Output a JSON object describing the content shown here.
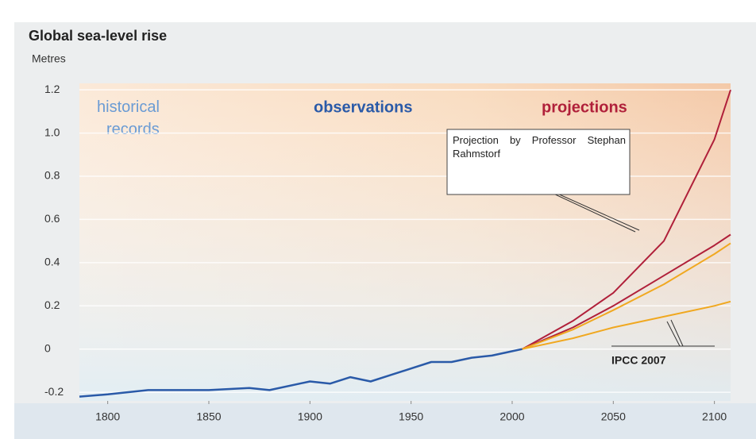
{
  "chart_data": {
    "type": "line",
    "title": "Global sea-level rise",
    "y_label": "Metres",
    "regions": [
      "historical records",
      "observations",
      "projections"
    ],
    "annotations": [
      "Projection by Professor Stephan Rahmstorf",
      "IPCC 2007"
    ],
    "xlim": [
      1786,
      2108
    ],
    "ylim": [
      -0.24,
      1.23
    ],
    "xticks": [
      1800,
      1850,
      1900,
      1950,
      2000,
      2050,
      2100
    ],
    "yticks": [
      1.2,
      {
        "value": 1,
        "label": "1.0"
      },
      0.8,
      0.6,
      0.4,
      0.2,
      0,
      -0.2
    ],
    "grid": true,
    "series": [
      {
        "name": "observations",
        "color": "#2a5aa8",
        "x": [
          1786,
          1800,
          1820,
          1850,
          1870,
          1880,
          1900,
          1910,
          1920,
          1930,
          1940,
          1950,
          1960,
          1970,
          1980,
          1990,
          2000,
          2005
        ],
        "values": [
          -0.22,
          -0.21,
          -0.19,
          -0.19,
          -0.18,
          -0.19,
          -0.15,
          -0.16,
          -0.13,
          -0.15,
          -0.12,
          -0.09,
          -0.06,
          -0.06,
          -0.04,
          -0.03,
          -0.01,
          0
        ]
      },
      {
        "name": "Rahmstorf upper",
        "color": "#b0203a",
        "x": [
          2005,
          2030,
          2050,
          2075,
          2100,
          2108
        ],
        "values": [
          0,
          0.13,
          0.26,
          0.5,
          0.97,
          1.2
        ]
      },
      {
        "name": "Rahmstorf lower",
        "color": "#b0203a",
        "x": [
          2005,
          2030,
          2050,
          2075,
          2100,
          2108
        ],
        "values": [
          0,
          0.1,
          0.2,
          0.34,
          0.48,
          0.53
        ]
      },
      {
        "name": "IPCC upper",
        "color": "#f0a820",
        "x": [
          2005,
          2030,
          2050,
          2075,
          2100,
          2108
        ],
        "values": [
          0,
          0.09,
          0.18,
          0.3,
          0.44,
          0.49
        ]
      },
      {
        "name": "IPCC lower",
        "color": "#f0a820",
        "x": [
          2005,
          2030,
          2050,
          2075,
          2100,
          2108
        ],
        "values": [
          0,
          0.05,
          0.1,
          0.15,
          0.2,
          0.22
        ]
      }
    ]
  }
}
